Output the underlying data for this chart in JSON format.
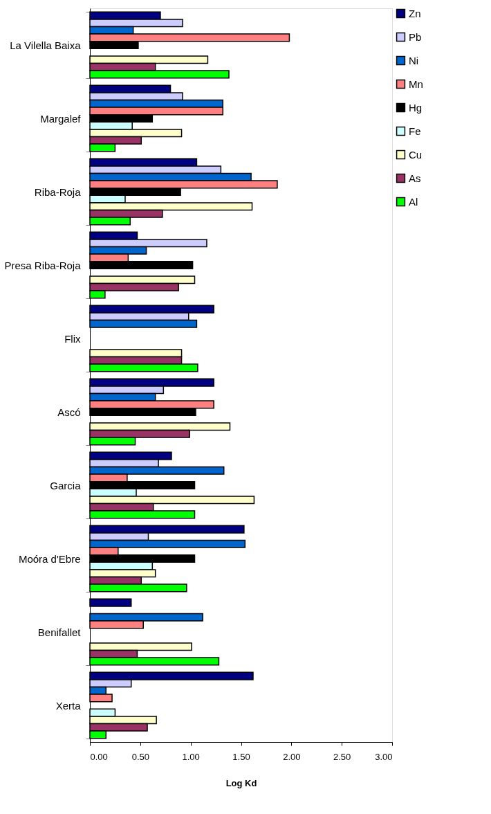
{
  "chart_data": {
    "type": "bar",
    "orientation": "horizontal",
    "xlabel": "Log Kd",
    "categories": [
      "La Vilella Baixa",
      "Margalef",
      "Riba-Roja",
      "Presa Riba-Roja",
      "Flix",
      "Ascó",
      "Garcia",
      "Moóra d'Ebre",
      "Benifallet",
      "Xerta"
    ],
    "series": [
      {
        "name": "Zn",
        "color": "#000080",
        "values": [
          0.7,
          0.8,
          1.06,
          0.47,
          1.23,
          1.23,
          0.81,
          1.53,
          0.41,
          1.62
        ]
      },
      {
        "name": "Pb",
        "color": "#ccccff",
        "values": [
          0.92,
          0.92,
          1.3,
          1.16,
          0.98,
          0.73,
          0.68,
          0.58,
          null,
          0.41
        ]
      },
      {
        "name": "Ni",
        "color": "#0066cc",
        "values": [
          0.43,
          1.32,
          1.6,
          0.56,
          1.06,
          0.65,
          1.33,
          1.54,
          1.12,
          0.16
        ]
      },
      {
        "name": "Mn",
        "color": "#ff8080",
        "values": [
          1.98,
          1.32,
          1.86,
          0.38,
          null,
          1.23,
          0.37,
          0.28,
          0.53,
          0.22
        ]
      },
      {
        "name": "Hg",
        "color": "#000000",
        "values": [
          0.48,
          0.62,
          0.9,
          1.02,
          null,
          1.05,
          1.04,
          1.04,
          null,
          null
        ]
      },
      {
        "name": "Fe",
        "color": "#ccffff",
        "values": [
          null,
          0.42,
          0.35,
          null,
          null,
          null,
          0.46,
          0.62,
          null,
          0.25
        ]
      },
      {
        "name": "Cu",
        "color": "#ffffcc",
        "values": [
          1.17,
          0.91,
          1.61,
          1.04,
          0.91,
          1.39,
          1.63,
          0.65,
          1.01,
          0.66
        ]
      },
      {
        "name": "As",
        "color": "#993366",
        "values": [
          0.65,
          0.51,
          0.72,
          0.88,
          0.91,
          0.99,
          0.63,
          0.51,
          0.47,
          0.57
        ]
      },
      {
        "name": "Al",
        "color": "#00ff00",
        "values": [
          1.38,
          0.25,
          0.4,
          0.15,
          1.07,
          0.45,
          1.04,
          0.96,
          1.28,
          0.16
        ]
      }
    ],
    "xlim": [
      0,
      3
    ],
    "xticks": [
      {
        "value": 0,
        "label": "0.00"
      },
      {
        "value": 0.5,
        "label": "0.50"
      },
      {
        "value": 1,
        "label": "1.00"
      },
      {
        "value": 1.5,
        "label": "1.50"
      },
      {
        "value": 2,
        "label": "2.00"
      },
      {
        "value": 2.5,
        "label": "2.50"
      },
      {
        "value": 3,
        "label": "3.00"
      }
    ],
    "grid": false,
    "legend": "top right"
  }
}
